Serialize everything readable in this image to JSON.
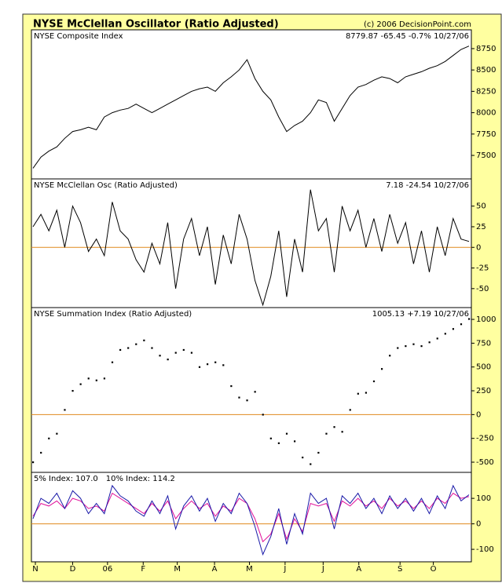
{
  "title": "NYSE McClellan Oscillator (Ratio Adjusted)",
  "copyright": "(c) 2006 DecisionPoint.com",
  "chart_data": [
    {
      "type": "line",
      "title": "NYSE Composite Index",
      "readout": "8779.87 -65.45 -0.7% 10/27/06",
      "color": "#000000",
      "xlim": [
        0,
        55
      ],
      "ylim": [
        7225,
        8970
      ],
      "yticks": [
        7500,
        7750,
        8000,
        8250,
        8500,
        8750
      ],
      "x": [
        0,
        1,
        2,
        3,
        4,
        5,
        6,
        7,
        8,
        9,
        10,
        11,
        12,
        13,
        14,
        15,
        16,
        17,
        18,
        19,
        20,
        21,
        22,
        23,
        24,
        25,
        26,
        27,
        28,
        29,
        30,
        31,
        32,
        33,
        34,
        35,
        36,
        37,
        38,
        39,
        40,
        41,
        42,
        43,
        44,
        45,
        46,
        47,
        48,
        49,
        50,
        51,
        52,
        53,
        54,
        55
      ],
      "values": [
        7350,
        7480,
        7550,
        7600,
        7700,
        7780,
        7800,
        7830,
        7800,
        7950,
        8000,
        8030,
        8050,
        8100,
        8050,
        8000,
        8050,
        8100,
        8150,
        8200,
        8250,
        8280,
        8300,
        8250,
        8350,
        8420,
        8500,
        8620,
        8400,
        8250,
        8150,
        7950,
        7780,
        7850,
        7900,
        8000,
        8150,
        8120,
        7900,
        8050,
        8200,
        8300,
        8330,
        8380,
        8420,
        8400,
        8350,
        8420,
        8450,
        8480,
        8520,
        8550,
        8600,
        8670,
        8740,
        8780
      ]
    },
    {
      "type": "line",
      "title": "NYSE McClellan Osc (Ratio Adjusted)",
      "readout": "7.18 -24.54 10/27/06",
      "color": "#000000",
      "hline": 0,
      "hline_color": "#e08a1e",
      "xlim": [
        0,
        55
      ],
      "ylim": [
        -73,
        83
      ],
      "yticks": [
        -50,
        -25,
        0,
        25,
        50
      ],
      "x": [
        0,
        1,
        2,
        3,
        4,
        5,
        6,
        7,
        8,
        9,
        10,
        11,
        12,
        13,
        14,
        15,
        16,
        17,
        18,
        19,
        20,
        21,
        22,
        23,
        24,
        25,
        26,
        27,
        28,
        29,
        30,
        31,
        32,
        33,
        34,
        35,
        36,
        37,
        38,
        39,
        40,
        41,
        42,
        43,
        44,
        45,
        46,
        47,
        48,
        49,
        50,
        51,
        52,
        53,
        54,
        55
      ],
      "values": [
        25,
        40,
        20,
        45,
        0,
        50,
        30,
        -5,
        10,
        -10,
        55,
        20,
        10,
        -15,
        -30,
        5,
        -20,
        30,
        -50,
        10,
        35,
        -10,
        25,
        -45,
        15,
        -20,
        40,
        10,
        -40,
        -70,
        -35,
        20,
        -60,
        10,
        -30,
        70,
        20,
        35,
        -30,
        50,
        20,
        45,
        0,
        35,
        -5,
        40,
        5,
        30,
        -20,
        20,
        -30,
        25,
        -10,
        35,
        10,
        7.18
      ]
    },
    {
      "type": "scatter",
      "title": "NYSE Summation Index (Ratio Adjusted)",
      "readout": "1005.13 +7.19 10/27/06",
      "color": "#000000",
      "hline": 0,
      "hline_color": "#e08a1e",
      "xlim": [
        0,
        55
      ],
      "ylim": [
        -607,
        1124
      ],
      "yticks": [
        -500,
        -250,
        0,
        250,
        500,
        750,
        1000
      ],
      "x": [
        0,
        1,
        2,
        3,
        4,
        5,
        6,
        7,
        8,
        9,
        10,
        11,
        12,
        13,
        14,
        15,
        16,
        17,
        18,
        19,
        20,
        21,
        22,
        23,
        24,
        25,
        26,
        27,
        28,
        29,
        30,
        31,
        32,
        33,
        34,
        35,
        36,
        37,
        38,
        39,
        40,
        41,
        42,
        43,
        44,
        45,
        46,
        47,
        48,
        49,
        50,
        51,
        52,
        53,
        54,
        55
      ],
      "values": [
        -500,
        -400,
        -250,
        -200,
        50,
        250,
        320,
        380,
        360,
        380,
        550,
        680,
        700,
        740,
        780,
        700,
        620,
        580,
        650,
        680,
        650,
        500,
        530,
        550,
        520,
        300,
        180,
        150,
        240,
        0,
        -250,
        -300,
        -200,
        -280,
        -450,
        -520,
        -400,
        -200,
        -130,
        -180,
        50,
        220,
        230,
        350,
        480,
        620,
        700,
        720,
        740,
        720,
        760,
        800,
        850,
        900,
        950,
        1005
      ]
    },
    {
      "type": "line",
      "hline": 0,
      "hline_color": "#e08a1e",
      "xlim": [
        0,
        55
      ],
      "ylim": [
        -149,
        202
      ],
      "yticks": [
        -100,
        0,
        100
      ],
      "xticks": [
        {
          "value": 0.3,
          "label": "N"
        },
        {
          "value": 5.0,
          "label": "D"
        },
        {
          "value": 9.4,
          "label": "06"
        },
        {
          "value": 13.9,
          "label": "F"
        },
        {
          "value": 18.2,
          "label": "M"
        },
        {
          "value": 22.9,
          "label": "A"
        },
        {
          "value": 27.3,
          "label": "M"
        },
        {
          "value": 31.8,
          "label": "J"
        },
        {
          "value": 36.6,
          "label": "J"
        },
        {
          "value": 41.1,
          "label": "A"
        },
        {
          "value": 46.3,
          "label": "S"
        },
        {
          "value": 50.5,
          "label": "O"
        }
      ],
      "x": [
        0,
        1,
        2,
        3,
        4,
        5,
        6,
        7,
        8,
        9,
        10,
        11,
        12,
        13,
        14,
        15,
        16,
        17,
        18,
        19,
        20,
        21,
        22,
        23,
        24,
        25,
        26,
        27,
        28,
        29,
        30,
        31,
        32,
        33,
        34,
        35,
        36,
        37,
        38,
        39,
        40,
        41,
        42,
        43,
        44,
        45,
        46,
        47,
        48,
        49,
        50,
        51,
        52,
        53,
        54,
        55
      ],
      "series": [
        {
          "name": "5% Index: 107.0",
          "color": "#e0109a",
          "values": [
            30,
            80,
            70,
            90,
            60,
            100,
            90,
            60,
            70,
            50,
            120,
            100,
            80,
            60,
            40,
            80,
            50,
            90,
            20,
            60,
            90,
            60,
            80,
            30,
            70,
            50,
            100,
            80,
            20,
            -70,
            -40,
            40,
            -60,
            20,
            -30,
            80,
            70,
            80,
            10,
            90,
            70,
            100,
            70,
            90,
            60,
            100,
            70,
            90,
            60,
            90,
            60,
            100,
            80,
            120,
            100,
            107
          ]
        },
        {
          "name": "10% Index: 114.2",
          "color": "#1a1aa8",
          "values": [
            20,
            100,
            80,
            120,
            60,
            130,
            100,
            40,
            80,
            40,
            150,
            110,
            90,
            50,
            30,
            90,
            40,
            110,
            -20,
            70,
            110,
            50,
            100,
            10,
            80,
            40,
            120,
            80,
            -10,
            -120,
            -50,
            60,
            -80,
            40,
            -40,
            120,
            80,
            100,
            -20,
            110,
            80,
            120,
            60,
            100,
            40,
            110,
            60,
            100,
            50,
            100,
            40,
            110,
            60,
            150,
            90,
            114.2
          ]
        }
      ]
    }
  ]
}
